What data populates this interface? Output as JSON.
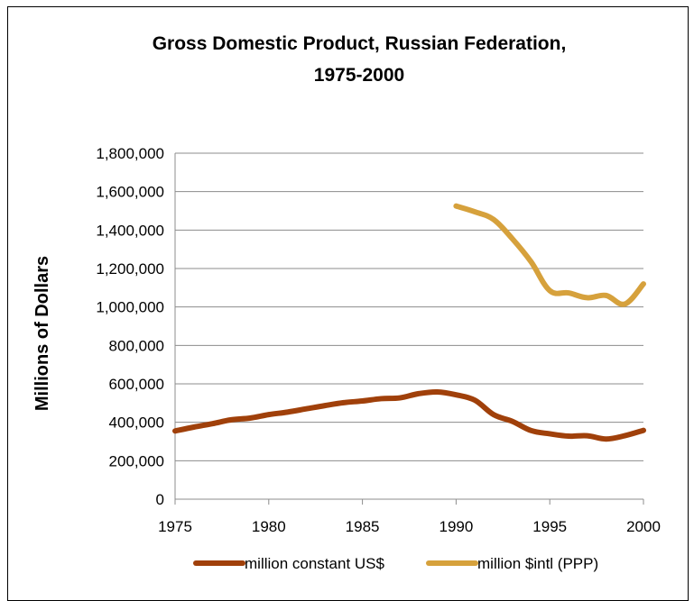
{
  "chart_data": {
    "type": "line",
    "title_lines": [
      "Gross Domestic Product, Russian Federation,",
      "1975-2000"
    ],
    "ylabel": "Millions of Dollars",
    "xlabel": "",
    "x": [
      1975,
      1976,
      1977,
      1978,
      1979,
      1980,
      1981,
      1982,
      1983,
      1984,
      1985,
      1986,
      1987,
      1988,
      1989,
      1990,
      1991,
      1992,
      1993,
      1994,
      1995,
      1996,
      1997,
      1998,
      1999,
      2000
    ],
    "xticks": [
      "1975",
      "1980",
      "1985",
      "1990",
      "1995",
      "2000"
    ],
    "ylim": [
      0,
      1800000
    ],
    "yticks": [
      "0",
      "200,000",
      "400,000",
      "600,000",
      "800,000",
      "1,000,000",
      "1,200,000",
      "1,400,000",
      "1,600,000",
      "1,800,000"
    ],
    "grid": "horizontal",
    "legend_position": "bottom",
    "series": [
      {
        "name": "million constant US$",
        "color": "#a0400a",
        "values": [
          355000,
          375000,
          393000,
          413000,
          422000,
          440000,
          453000,
          470000,
          487000,
          502000,
          511000,
          523000,
          527000,
          549000,
          558000,
          543000,
          515000,
          440000,
          405000,
          357000,
          340000,
          328000,
          330000,
          313000,
          330000,
          358000
        ]
      },
      {
        "name": "million $intl (PPP)",
        "color": "#d6a13c",
        "values": [
          null,
          null,
          null,
          null,
          null,
          null,
          null,
          null,
          null,
          null,
          null,
          null,
          null,
          null,
          null,
          1525000,
          1495000,
          1455000,
          1355000,
          1235000,
          1085000,
          1073000,
          1048000,
          1060000,
          1015000,
          1120000
        ]
      }
    ]
  }
}
